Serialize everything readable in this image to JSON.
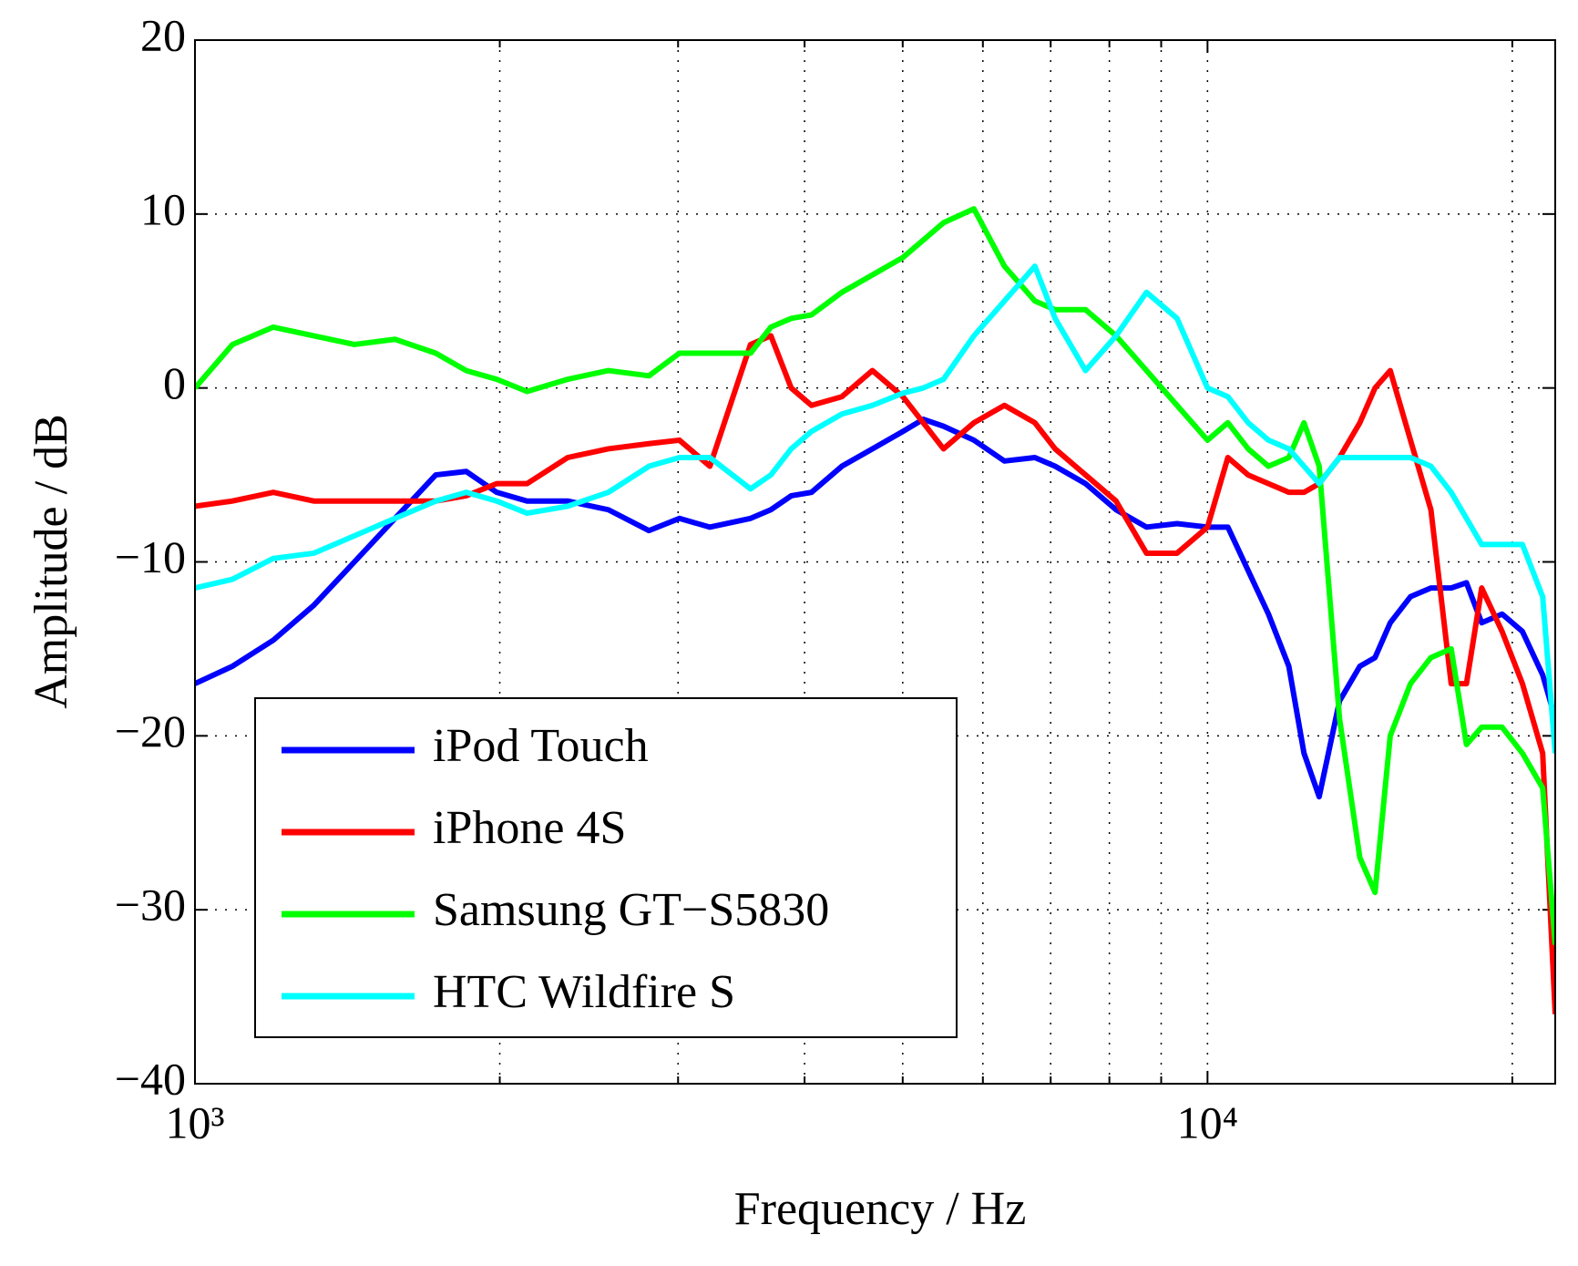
{
  "chart_data": {
    "type": "line",
    "x_label": "Frequency / Hz",
    "y_label": "Amplitude / dB",
    "x_log": true,
    "grid": true,
    "legend": "lower left",
    "xlim": [
      1000,
      22050
    ],
    "ylim": [
      -40,
      20
    ],
    "xticks": [
      {
        "value": 1000,
        "label": "10³"
      },
      {
        "value": 10000,
        "label": "10⁴"
      }
    ],
    "xminorticks": [
      2000,
      3000,
      4000,
      5000,
      6000,
      7000,
      8000,
      9000,
      20000
    ],
    "yticks": [
      {
        "value": -40,
        "label": "−40"
      },
      {
        "value": -30,
        "label": "−30"
      },
      {
        "value": -20,
        "label": "−20"
      },
      {
        "value": -10,
        "label": "−10"
      },
      0,
      10,
      20
    ],
    "x": [
      1000,
      1089,
      1195,
      1310,
      1437,
      1576,
      1729,
      1853,
      1986,
      2128,
      2334,
      2560,
      2808,
      3009,
      3225,
      3537,
      3705,
      3880,
      4063,
      4354,
      4667,
      5002,
      5239,
      5486,
      5879,
      6301,
      6753,
      7071,
      7578,
      8122,
      8705,
      9330,
      10000,
      10474,
      10968,
      11487,
      12031,
      12453,
      12891,
      13501,
      14140,
      14637,
      15152,
      15866,
      16620,
      17404,
      18020,
      18655,
      19540,
      20465,
      21430,
      22050
    ],
    "series": [
      {
        "name": "iPod Touch",
        "color": "#0000ff",
        "values": [
          -17,
          -16,
          -14.5,
          -12.5,
          -10,
          -7.5,
          -5,
          -4.8,
          -6,
          -6.5,
          -6.5,
          -7,
          -8.2,
          -7.5,
          -8,
          -7.5,
          -7,
          -6.2,
          -6,
          -4.5,
          -3.5,
          -2.5,
          -1.8,
          -2.2,
          -3,
          -4.2,
          -4,
          -4.5,
          -5.5,
          -7,
          -8,
          -7.8,
          -8,
          -8,
          -10.5,
          -13,
          -16,
          -21,
          -23.5,
          -18,
          -16,
          -15.5,
          -13.5,
          -12,
          -11.5,
          -11.5,
          -11.2,
          -13.5,
          -13,
          -14,
          -16.5,
          -19
        ]
      },
      {
        "name": "iPhone 4S",
        "color": "#ff0000",
        "values": [
          -6.8,
          -6.5,
          -6,
          -6.5,
          -6.5,
          -6.5,
          -6.5,
          -6.2,
          -5.5,
          -5.5,
          -4,
          -3.5,
          -3.2,
          -3,
          -4.5,
          2.5,
          3,
          0,
          -1,
          -0.5,
          1,
          -0.5,
          -2,
          -3.5,
          -2,
          -1,
          -2,
          -3.5,
          -5,
          -6.5,
          -9.5,
          -9.5,
          -8,
          -4,
          -5,
          -5.5,
          -6,
          -6,
          -5.5,
          -4,
          -2,
          0,
          1,
          -3,
          -7,
          -17,
          -17,
          -11.5,
          -14,
          -17,
          -21,
          -36
        ]
      },
      {
        "name": "Samsung GT−S5830",
        "color": "#00ff00",
        "values": [
          0,
          2.5,
          3.5,
          3,
          2.5,
          2.8,
          2,
          1,
          0.5,
          -0.2,
          0.5,
          1,
          0.7,
          2,
          2,
          2,
          3.5,
          4,
          4.2,
          5.5,
          6.5,
          7.5,
          8.5,
          9.5,
          10.3,
          7,
          5,
          4.5,
          4.5,
          3,
          1,
          -1,
          -3,
          -2,
          -3.5,
          -4.5,
          -4,
          -2,
          -4.5,
          -19,
          -27,
          -29,
          -20,
          -17,
          -15.5,
          -15,
          -20.5,
          -19.5,
          -19.5,
          -21,
          -23,
          -32
        ]
      },
      {
        "name": "HTC Wildfire S",
        "color": "#00ffff",
        "values": [
          -11.5,
          -11,
          -9.8,
          -9.5,
          -8.5,
          -7.5,
          -6.5,
          -6,
          -6.5,
          -7.2,
          -6.8,
          -6,
          -4.5,
          -4,
          -4,
          -5.8,
          -5,
          -3.5,
          -2.5,
          -1.5,
          -1,
          -0.3,
          0,
          0.5,
          3,
          5,
          7,
          4,
          1,
          3,
          5.5,
          4,
          0,
          -0.5,
          -2,
          -3,
          -3.5,
          -4.5,
          -5.5,
          -4,
          -4,
          -4,
          -4,
          -4,
          -4.5,
          -6,
          -7.5,
          -9,
          -9,
          -9,
          -12,
          -21
        ]
      }
    ]
  }
}
